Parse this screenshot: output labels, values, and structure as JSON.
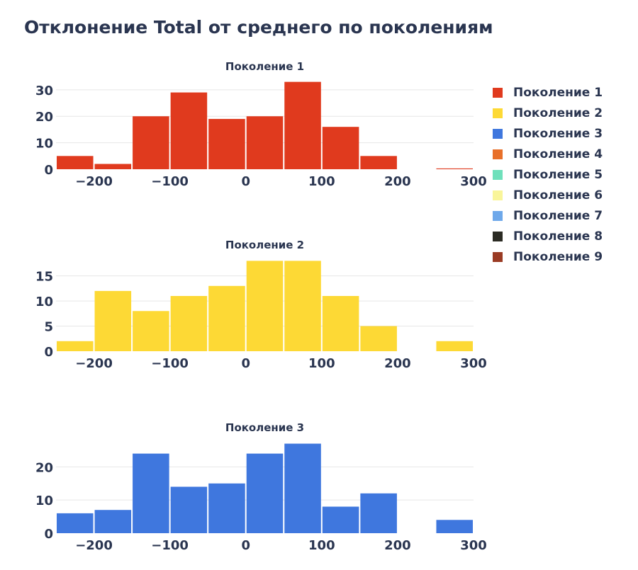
{
  "chart_data": {
    "type": "bar",
    "title": "Отклонение Total от среднего по поколениям",
    "bin_edges": [
      -250,
      -200,
      -150,
      -100,
      -50,
      0,
      50,
      100,
      150,
      200,
      250,
      300
    ],
    "xlim": [
      -250,
      300
    ],
    "x_ticks": [
      -200,
      -100,
      0,
      100,
      200,
      300
    ],
    "x_tick_labels": [
      "−200",
      "−100",
      "0",
      "100",
      "200",
      "300"
    ],
    "grid": true,
    "legend_placement": "right",
    "subplots": [
      {
        "title": "Поколение 1",
        "color": "#e03a1e",
        "values": [
          5,
          2,
          20,
          29,
          19,
          20,
          33,
          16,
          5,
          0,
          0.3
        ],
        "ylim": [
          0,
          34.5
        ],
        "y_ticks": [
          0,
          10,
          20,
          30
        ]
      },
      {
        "title": "Поколение 2",
        "color": "#fdd935",
        "values": [
          2,
          12,
          8,
          11,
          13,
          18,
          18,
          11,
          5,
          0,
          2
        ],
        "ylim": [
          0,
          18.9
        ],
        "y_ticks": [
          0,
          5,
          10,
          15
        ]
      },
      {
        "title": "Поколение 3",
        "color": "#3f77de",
        "values": [
          6,
          7,
          24,
          14,
          15,
          24,
          27,
          8,
          12,
          0,
          4
        ],
        "ylim": [
          0,
          28.4
        ],
        "y_ticks": [
          0,
          10,
          20
        ]
      }
    ],
    "legend": [
      {
        "name": "Поколение 1",
        "color": "#e03a1e"
      },
      {
        "name": "Поколение 2",
        "color": "#fdd935"
      },
      {
        "name": "Поколение 3",
        "color": "#3f77de"
      },
      {
        "name": "Поколение 4",
        "color": "#e8702a"
      },
      {
        "name": "Поколение 5",
        "color": "#6fe0bb"
      },
      {
        "name": "Поколение 6",
        "color": "#f9f59a"
      },
      {
        "name": "Поколение 7",
        "color": "#6ea8ea"
      },
      {
        "name": "Поколение 8",
        "color": "#2b2b24"
      },
      {
        "name": "Поколение 9",
        "color": "#9a3b24"
      }
    ]
  }
}
